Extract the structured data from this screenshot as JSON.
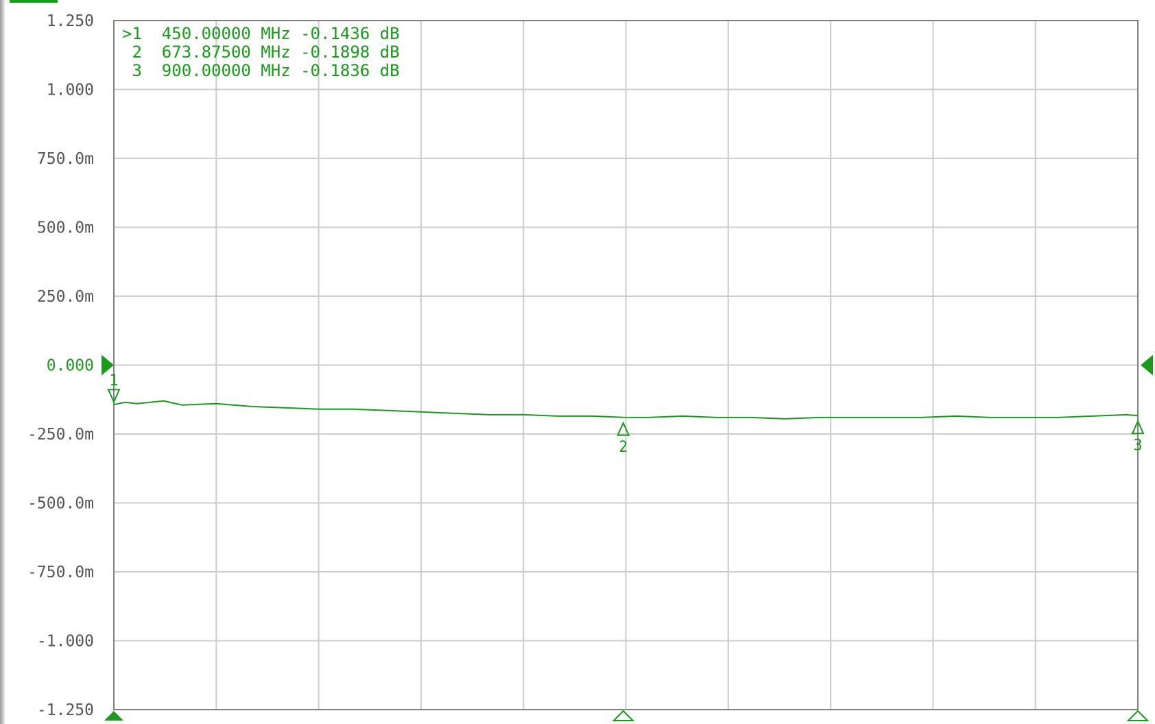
{
  "chart_data": {
    "type": "line",
    "title": "",
    "xlabel": "",
    "ylabel": "",
    "xlim": [
      450,
      900
    ],
    "ylim": [
      -1.25,
      1.25
    ],
    "x_divisions": 10,
    "grid": true,
    "reference_level": 0,
    "y_ticks": [
      {
        "value": 1.25,
        "label": "1.250"
      },
      {
        "value": 1.0,
        "label": "1.000"
      },
      {
        "value": 0.75,
        "label": "750.0m"
      },
      {
        "value": 0.5,
        "label": "500.0m"
      },
      {
        "value": 0.25,
        "label": "250.0m"
      },
      {
        "value": 0.0,
        "label": "0.000"
      },
      {
        "value": -0.25,
        "label": "-250.0m"
      },
      {
        "value": -0.5,
        "label": "-500.0m"
      },
      {
        "value": -0.75,
        "label": "-750.0m"
      },
      {
        "value": -1.0,
        "label": "-1.000"
      },
      {
        "value": -1.25,
        "label": "-1.250"
      }
    ],
    "series": [
      {
        "color": "#1a9a1a",
        "x": [
          450,
          455,
          460,
          472,
          480,
          495,
          510,
          525,
          540,
          555,
          570,
          585,
          600,
          615,
          630,
          645,
          660,
          673.875,
          685,
          700,
          715,
          730,
          745,
          760,
          775,
          790,
          805,
          820,
          835,
          850,
          865,
          880,
          895,
          900
        ],
        "y": [
          -0.1436,
          -0.135,
          -0.14,
          -0.13,
          -0.145,
          -0.14,
          -0.15,
          -0.155,
          -0.16,
          -0.16,
          -0.165,
          -0.17,
          -0.175,
          -0.18,
          -0.18,
          -0.185,
          -0.185,
          -0.1898,
          -0.19,
          -0.185,
          -0.19,
          -0.19,
          -0.195,
          -0.19,
          -0.19,
          -0.19,
          -0.19,
          -0.185,
          -0.19,
          -0.19,
          -0.19,
          -0.185,
          -0.18,
          -0.1836
        ]
      }
    ],
    "markers": [
      {
        "id": "1",
        "prefix": ">",
        "frequency": 450,
        "value": -0.1436,
        "readout": ">1  450.00000 MHz -0.1436 dB"
      },
      {
        "id": "2",
        "prefix": " ",
        "frequency": 673.875,
        "value": -0.1898,
        "readout": " 2  673.87500 MHz -0.1898 dB"
      },
      {
        "id": "3",
        "prefix": " ",
        "frequency": 900,
        "value": -0.1836,
        "readout": " 3  900.00000 MHz -0.1836 dB"
      }
    ]
  },
  "colors": {
    "trace": "#1a9a1a",
    "grid": "#cccccc",
    "frame": "#808080",
    "tick_text": "#555555",
    "background": "#ffffff"
  }
}
